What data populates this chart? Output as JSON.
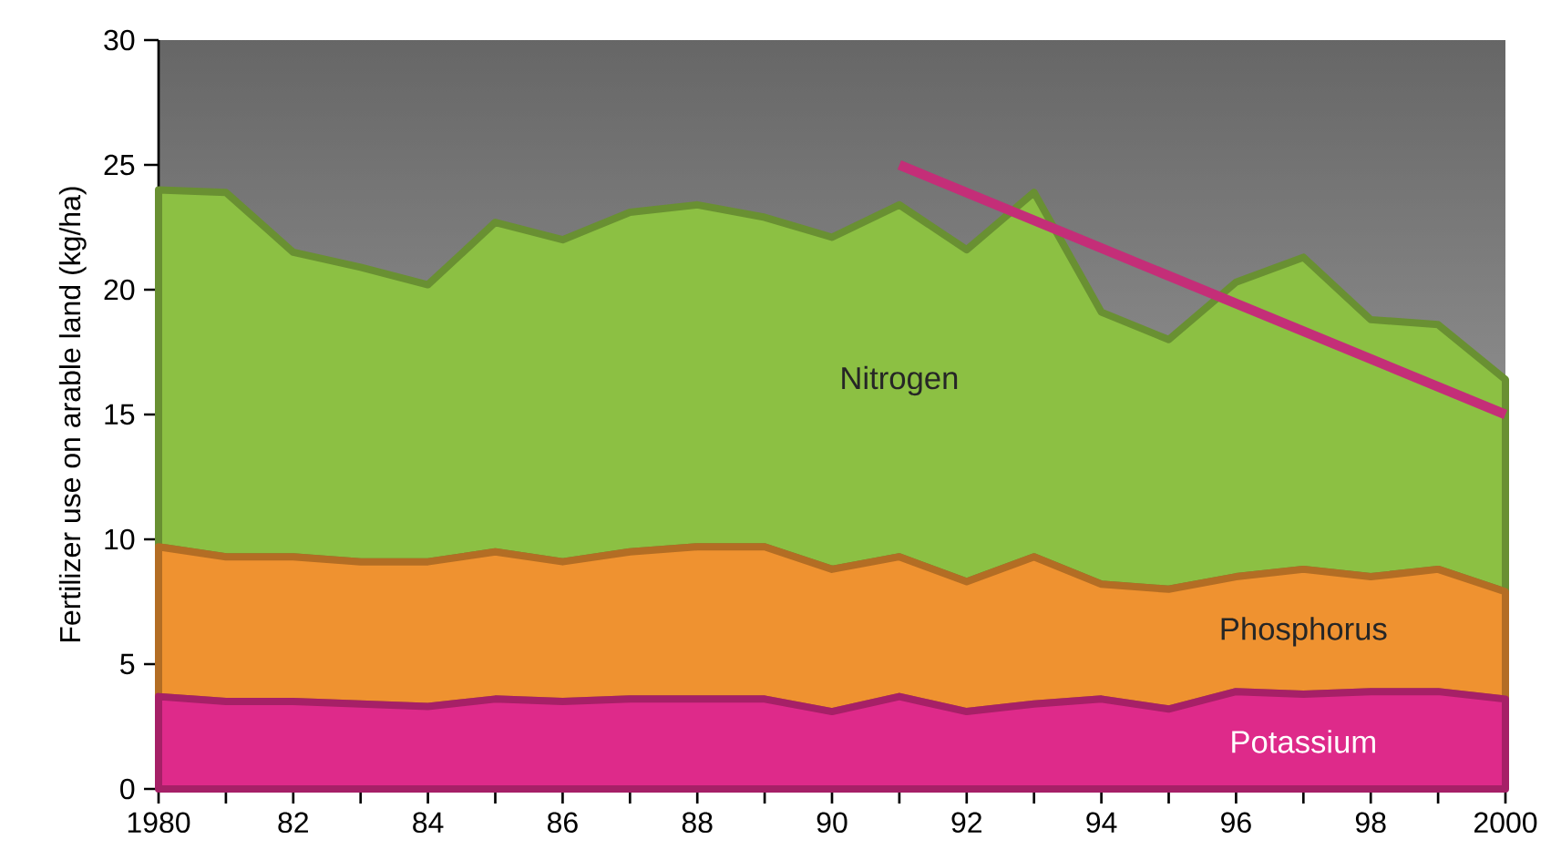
{
  "chart_data": {
    "type": "area",
    "stacked": true,
    "ylabel": "Fertilizer use on arable land (kg/ha)",
    "x": [
      1980,
      1981,
      1982,
      1983,
      1984,
      1985,
      1986,
      1987,
      1988,
      1989,
      1990,
      1991,
      1992,
      1993,
      1994,
      1995,
      1996,
      1997,
      1998,
      1999,
      2000
    ],
    "series": [
      {
        "name": "Potassium",
        "color": "#de2a8a",
        "values": [
          3.7,
          3.5,
          3.5,
          3.4,
          3.3,
          3.6,
          3.5,
          3.6,
          3.6,
          3.6,
          3.1,
          3.7,
          3.1,
          3.4,
          3.6,
          3.2,
          3.9,
          3.8,
          3.9,
          3.9,
          3.6
        ]
      },
      {
        "name": "Phosphorus",
        "color": "#ef9230",
        "values": [
          6.0,
          5.8,
          5.8,
          5.7,
          5.8,
          5.9,
          5.6,
          5.9,
          6.1,
          6.1,
          5.7,
          5.6,
          5.2,
          5.9,
          4.6,
          4.8,
          4.6,
          5.0,
          4.6,
          4.9,
          4.3
        ]
      },
      {
        "name": "Nitrogen",
        "color": "#8cc043",
        "values": [
          14.3,
          14.6,
          12.2,
          11.8,
          11.1,
          13.2,
          12.9,
          13.6,
          13.7,
          13.2,
          13.3,
          14.1,
          13.3,
          14.6,
          10.9,
          10.0,
          11.8,
          12.5,
          10.3,
          9.8,
          8.5
        ]
      },
      {
        "type": "line",
        "color": "#c42e78",
        "x": [
          1991,
          2000
        ],
        "values": [
          25,
          15.0
        ]
      }
    ],
    "xlim": [
      1980,
      2000
    ],
    "ylim": [
      0,
      30
    ],
    "xticks": [
      {
        "value": 1980,
        "label": "1980"
      },
      {
        "value": 1981,
        "label": null
      },
      {
        "value": 1982,
        "label": "82"
      },
      {
        "value": 1983,
        "label": null
      },
      {
        "value": 1984,
        "label": "84"
      },
      {
        "value": 1985,
        "label": null
      },
      {
        "value": 1986,
        "label": "86"
      },
      {
        "value": 1987,
        "label": null
      },
      {
        "value": 1988,
        "label": "88"
      },
      {
        "value": 1989,
        "label": null
      },
      {
        "value": 1990,
        "label": "90"
      },
      {
        "value": 1991,
        "label": null
      },
      {
        "value": 1992,
        "label": "92"
      },
      {
        "value": 1993,
        "label": null
      },
      {
        "value": 1994,
        "label": "94"
      },
      {
        "value": 1995,
        "label": null
      },
      {
        "value": 1996,
        "label": "96"
      },
      {
        "value": 1997,
        "label": null
      },
      {
        "value": 1998,
        "label": "98"
      },
      {
        "value": 1999,
        "label": null
      },
      {
        "value": 2000,
        "label": "2000"
      }
    ],
    "yticks": [
      0,
      5,
      10,
      15,
      20,
      25,
      30
    ],
    "grid": false
  }
}
